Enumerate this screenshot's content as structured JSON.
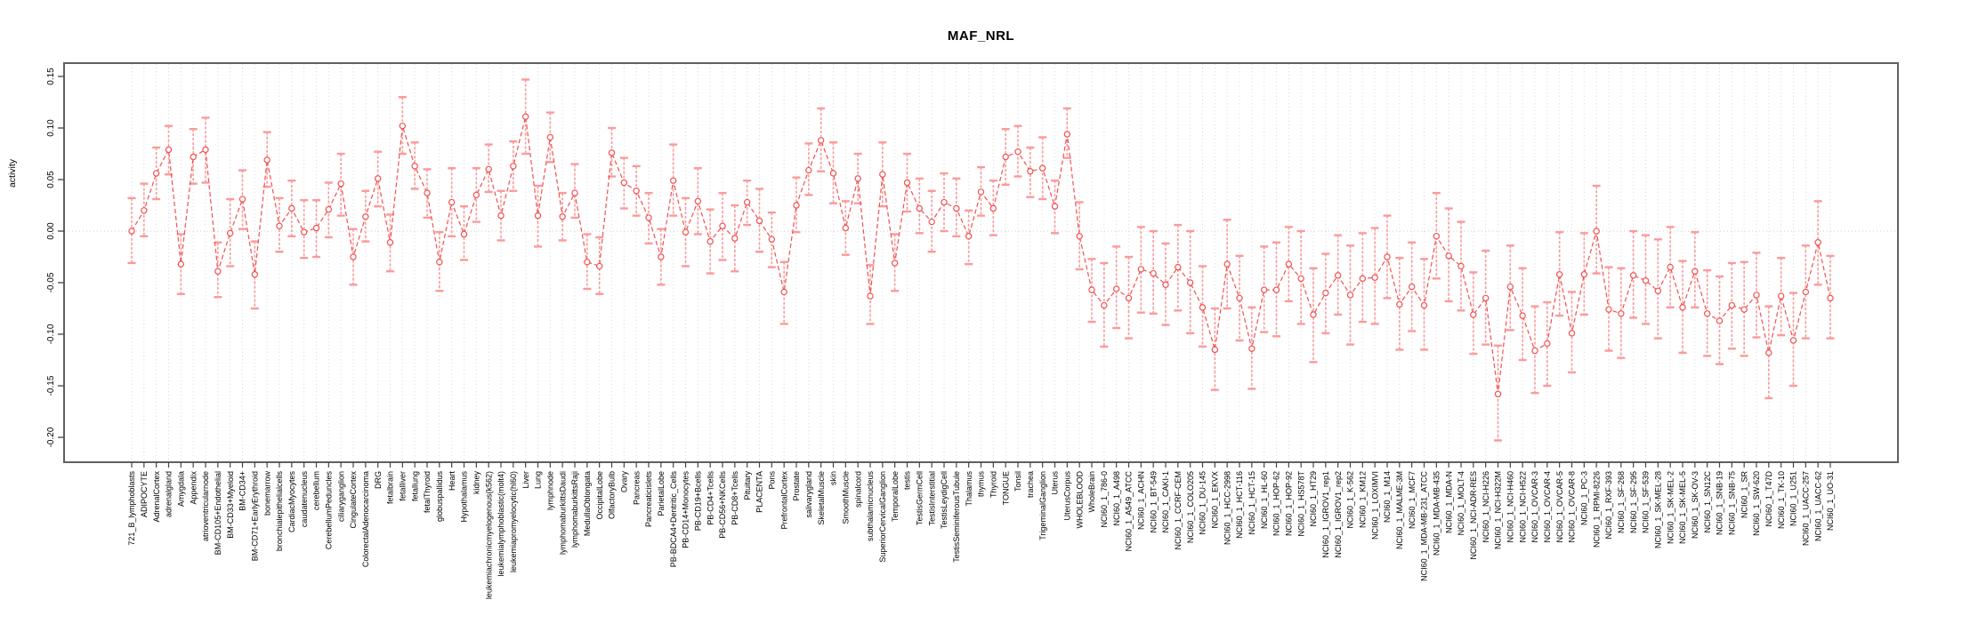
{
  "chart_data": {
    "type": "scatter",
    "title": "MAF_NRL",
    "ylabel": "activity",
    "xlabel": "",
    "ylim": [
      -0.225,
      0.16
    ],
    "ytick_labels": [
      "0.15",
      "0.10",
      "0.05",
      "0.00",
      "-0.05",
      "-0.10",
      "-0.15",
      "-0.20"
    ],
    "ytick_values": [
      0.15,
      0.1,
      0.05,
      0.0,
      -0.05,
      -0.1,
      -0.15,
      -0.2
    ],
    "grid": "vertical dotted line per category; horizontal dotted line at 0",
    "legend_position": "none",
    "colors": {
      "point": "#f25050",
      "errorbar": "#fb9a9a",
      "grid": "#dcdcdc",
      "zero_line": "#cccccc",
      "box": "#606060",
      "tick": "#444444",
      "text": "#000000"
    },
    "categories": [
      "721_B_lymphoblasts",
      "ADIPOCYTE",
      "AdrenalCortex",
      "adrenalgland",
      "Amygdala",
      "Appendix",
      "atrioventricularnode",
      "BM-CD105+Endothelial",
      "BM-CD33+Myeloid",
      "BM-CD34+",
      "BM-CD71+EarlyErythroid",
      "bonemarrow",
      "bronchialepithelialcells",
      "CardiacMyocytes",
      "caudatenucleus",
      "cerebellum",
      "CerebellumPeduncles",
      "ciliaryganglion",
      "CingulateCortex",
      "ColorectalAdenocarcinoma",
      "DRG",
      "fetalbrain",
      "fetalliver",
      "fetallung",
      "fetalThyroid",
      "globuspallidus",
      "Heart",
      "Hypothalamus",
      "kidney",
      "leukemiachronicmyelogenous(k562)",
      "leukemialymphoblastic(molt4)",
      "leukemiapromyelocytic(hl60)",
      "Liver",
      "Lung",
      "lymphnode",
      "lymphomaburkittsDaudi",
      "lymphomaburkittsRaji",
      "MedullaOblongata",
      "OccipitalLobe",
      "OlfactoryBulb",
      "Ovary",
      "Pancreas",
      "Pancreaticislets",
      "ParietalLobe",
      "PB-BDCA4+Dentritic_Cells",
      "PB-CD14+Monocytes",
      "PB-CD19+Bcells",
      "PB-CD4+Tcells",
      "PB-CD56+NKCells",
      "PB-CD8+Tcells",
      "Pituitary",
      "PLACENTA",
      "Pons",
      "PrefrontalCortex",
      "Prostate",
      "salivarygland",
      "SkeletalMuscle",
      "skin",
      "SmoothMuscle",
      "spinalcord",
      "subthalamicnucleus",
      "SuperiorCervicalGanglion",
      "TemporalLobe",
      "testis",
      "TestisGermCell",
      "TestisInterstitial",
      "TestisLeydigCell",
      "TestisSeminiferousTubule",
      "Thalamus",
      "thymus",
      "Thyroid",
      "TONGUE",
      "Tonsil",
      "trachea",
      "TrigeminalGanglion",
      "Uterus",
      "UterusCorpus",
      "WHOLEBLOOD",
      "WholeBrain",
      "NCI60_1_786-0",
      "NCI60_1_A498",
      "NCI60_1_A549_ATCC",
      "NCI60_1_ACHN",
      "NCI60_1_BT-549",
      "NCI60_1_CAKI-1",
      "NCI60_1_CCRF-CEM",
      "NCI60_1_COLO205",
      "NCI60_1_DU-145",
      "NCI60_1_EKVX",
      "NCI60_1_HCC-2998",
      "NCI60_1_HCT-116",
      "NCI60_1_HCT-15",
      "NCI60_1_HL-60",
      "NCI60_1_HOP-62",
      "NCI60_1_HOP-92",
      "NCI60_1_HS578T",
      "NCI60_1_HT29",
      "NCI60_1_IGROV1_rep1",
      "NCI60_1_IGROV1_rep2",
      "NCI60_1_K-562",
      "NCI60_1_KM12",
      "NCI60_1_LOXIMVI",
      "NCI60_1_M14",
      "NCI60_1_MALME-3M",
      "NCI60_1_MCF7",
      "NCI60_1_MDA-MB-231_ATCC",
      "NCI60_1_MDA-MB-435",
      "NCI60_1_MDA-N",
      "NCI60_1_MOLT-4",
      "NCI60_1_NCI-ADR-RES",
      "NCI60_1_NCI-H226",
      "NCI60_1_NCI-H322M",
      "NCI60_1_NCI-H460",
      "NCI60_1_NCI-H522",
      "NCI60_1_OVCAR-3",
      "NCI60_1_OVCAR-4",
      "NCI60_1_OVCAR-5",
      "NCI60_1_OVCAR-8",
      "NCI60_1_PC-3",
      "NCI60_1_RPMI-8226",
      "NCI60_1_RXF-393",
      "NCI60_1_SF-268",
      "NCI60_1_SF-295",
      "NCI60_1_SF-539",
      "NCI60_1_SK-MEL-28",
      "NCI60_1_SK-MEL-2",
      "NCI60_1_SK-MEL-5",
      "NCI60_1_SK-OV-3",
      "NCI60_1_SN12C",
      "NCI60_1_SNB-19",
      "NCI60_1_SNB-75",
      "NCI60_1_SR",
      "NCI60_1_SW-620",
      "NCI60_1_T47D",
      "NCI60_1_TK-10",
      "NCI60_1_U251",
      "NCI60_1_UACC-257",
      "NCI60_1_UACC-62",
      "NCI60_1_UO-31"
    ],
    "series": [
      {
        "name": "activity",
        "values": [
          0.0,
          0.02,
          0.056,
          0.079,
          -0.032,
          0.072,
          0.079,
          -0.039,
          -0.002,
          0.031,
          -0.042,
          0.069,
          0.005,
          0.022,
          -0.001,
          0.003,
          0.021,
          0.046,
          -0.025,
          0.014,
          0.051,
          -0.011,
          0.102,
          0.063,
          0.037,
          -0.03,
          0.028,
          -0.003,
          0.035,
          0.06,
          0.015,
          0.063,
          0.111,
          0.015,
          0.091,
          0.014,
          0.037,
          -0.03,
          -0.034,
          0.076,
          0.047,
          0.039,
          0.013,
          -0.025,
          0.049,
          -0.001,
          0.029,
          -0.01,
          0.005,
          -0.007,
          0.028,
          0.01,
          -0.008,
          -0.059,
          0.025,
          0.059,
          0.088,
          0.056,
          0.003,
          0.051,
          -0.063,
          0.055,
          -0.031,
          0.047,
          0.022,
          0.009,
          0.028,
          0.022,
          -0.005,
          0.038,
          0.022,
          0.072,
          0.077,
          0.058,
          0.061,
          0.024,
          0.094,
          -0.005,
          -0.057,
          -0.072,
          -0.056,
          -0.065,
          -0.037,
          -0.041,
          -0.052,
          -0.035,
          -0.05,
          -0.074,
          -0.115,
          -0.032,
          -0.065,
          -0.114,
          -0.057,
          -0.057,
          -0.032,
          -0.046,
          -0.081,
          -0.06,
          -0.043,
          -0.062,
          -0.046,
          -0.045,
          -0.025,
          -0.071,
          -0.054,
          -0.072,
          -0.005,
          -0.024,
          -0.034,
          -0.081,
          -0.065,
          -0.158,
          -0.054,
          -0.082,
          -0.116,
          -0.109,
          -0.042,
          -0.099,
          -0.042,
          0.0,
          -0.076,
          -0.08,
          -0.043,
          -0.048,
          -0.058,
          -0.035,
          -0.074,
          -0.039,
          -0.08,
          -0.087,
          -0.072,
          -0.076,
          -0.062,
          -0.118,
          -0.063,
          -0.106,
          -0.059,
          -0.011,
          -0.065
        ],
        "error_low": [
          -0.031,
          -0.005,
          0.031,
          0.055,
          -0.061,
          0.046,
          0.047,
          -0.064,
          -0.034,
          0.002,
          -0.075,
          0.043,
          -0.02,
          -0.005,
          -0.026,
          -0.025,
          -0.006,
          0.015,
          -0.052,
          -0.01,
          0.024,
          -0.039,
          0.075,
          0.041,
          0.013,
          -0.058,
          -0.005,
          -0.028,
          0.009,
          0.038,
          -0.009,
          0.039,
          0.075,
          -0.015,
          0.067,
          -0.009,
          0.013,
          -0.056,
          -0.061,
          0.053,
          0.022,
          0.015,
          -0.012,
          -0.052,
          0.015,
          -0.034,
          -0.003,
          -0.041,
          -0.028,
          -0.039,
          0.006,
          -0.02,
          -0.035,
          -0.09,
          -0.001,
          0.035,
          0.058,
          0.027,
          -0.023,
          0.027,
          -0.09,
          0.024,
          -0.058,
          0.019,
          -0.002,
          -0.02,
          0.0,
          -0.005,
          -0.032,
          0.015,
          -0.004,
          0.045,
          0.053,
          0.033,
          0.031,
          -0.002,
          0.071,
          -0.037,
          -0.088,
          -0.112,
          -0.094,
          -0.104,
          -0.079,
          -0.08,
          -0.091,
          -0.077,
          -0.099,
          -0.112,
          -0.154,
          -0.075,
          -0.106,
          -0.153,
          -0.098,
          -0.102,
          -0.068,
          -0.09,
          -0.127,
          -0.099,
          -0.081,
          -0.11,
          -0.088,
          -0.09,
          -0.065,
          -0.115,
          -0.097,
          -0.115,
          -0.046,
          -0.068,
          -0.077,
          -0.119,
          -0.11,
          -0.203,
          -0.096,
          -0.125,
          -0.157,
          -0.15,
          -0.082,
          -0.137,
          -0.081,
          -0.041,
          -0.116,
          -0.123,
          -0.084,
          -0.09,
          -0.104,
          -0.074,
          -0.118,
          -0.074,
          -0.121,
          -0.129,
          -0.114,
          -0.121,
          -0.103,
          -0.162,
          -0.101,
          -0.15,
          -0.104,
          -0.052,
          -0.104
        ],
        "error_high": [
          0.032,
          0.046,
          0.081,
          0.102,
          -0.003,
          0.099,
          0.11,
          -0.011,
          0.031,
          0.059,
          -0.01,
          0.096,
          0.032,
          0.049,
          0.03,
          0.03,
          0.047,
          0.075,
          0.002,
          0.039,
          0.077,
          0.016,
          0.13,
          0.086,
          0.06,
          -0.001,
          0.061,
          0.024,
          0.061,
          0.084,
          0.039,
          0.087,
          0.147,
          0.044,
          0.115,
          0.037,
          0.065,
          -0.003,
          -0.006,
          0.1,
          0.071,
          0.063,
          0.037,
          0.002,
          0.084,
          0.032,
          0.061,
          0.021,
          0.037,
          0.025,
          0.049,
          0.041,
          0.018,
          -0.03,
          0.052,
          0.085,
          0.119,
          0.086,
          0.029,
          0.075,
          -0.033,
          0.086,
          -0.003,
          0.075,
          0.051,
          0.039,
          0.056,
          0.051,
          0.02,
          0.062,
          0.049,
          0.099,
          0.102,
          0.081,
          0.091,
          0.049,
          0.119,
          0.028,
          -0.027,
          -0.031,
          -0.015,
          -0.025,
          0.004,
          0.0,
          -0.012,
          0.006,
          0.0,
          -0.034,
          -0.075,
          0.011,
          -0.024,
          -0.074,
          -0.015,
          -0.011,
          0.004,
          0.0,
          -0.036,
          -0.022,
          -0.004,
          -0.014,
          -0.002,
          0.003,
          0.015,
          -0.026,
          -0.011,
          -0.027,
          0.037,
          0.022,
          0.009,
          -0.04,
          -0.019,
          -0.111,
          -0.014,
          -0.036,
          -0.073,
          -0.069,
          -0.001,
          -0.059,
          -0.002,
          0.044,
          -0.035,
          -0.036,
          0.0,
          -0.004,
          -0.008,
          0.004,
          -0.029,
          -0.001,
          -0.038,
          -0.044,
          -0.031,
          -0.03,
          -0.021,
          -0.073,
          -0.026,
          -0.06,
          -0.014,
          0.029,
          -0.024
        ]
      }
    ]
  }
}
